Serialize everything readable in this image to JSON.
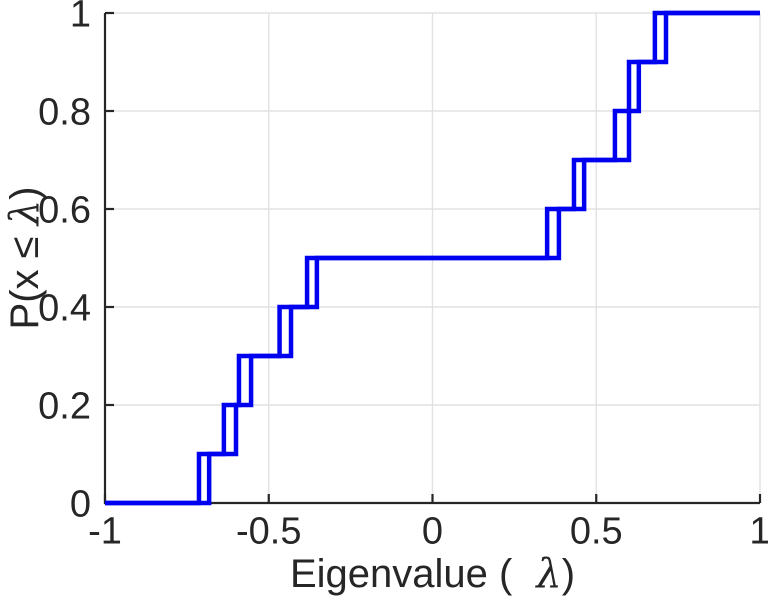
{
  "figure": {
    "background_color": "#FFFFFF"
  },
  "chart_data": {
    "type": "line",
    "subtype": "empirical-cdf-stairs",
    "title": "",
    "xlabel": "Eigenvalue ( λ)",
    "ylabel": "P(x ≤ λ)",
    "xlabel_parts": {
      "prefix": "Eigenvalue (",
      "symbol": "λ",
      "suffix": ")"
    },
    "ylabel_parts": {
      "prefix": "P(x ≤ ",
      "symbol": "λ",
      "suffix": ")"
    },
    "xlim": [
      -1,
      1
    ],
    "ylim": [
      0,
      1
    ],
    "x_ticks": [
      -1,
      -0.5,
      0,
      0.5,
      1
    ],
    "x_tick_labels": [
      "-1",
      "-0.5",
      "0",
      "0.5",
      "1"
    ],
    "y_ticks": [
      0,
      0.2,
      0.4,
      0.6,
      0.8,
      1
    ],
    "y_tick_labels": [
      "0",
      "0.2",
      "0.4",
      "0.6",
      "0.8",
      "1"
    ],
    "grid": true,
    "legend": null,
    "cdf_step": 0.1,
    "series": [
      {
        "name": "eigenvalue-cdf-1",
        "color": "#0000F0",
        "eigenvalues": [
          -0.713,
          -0.637,
          -0.591,
          -0.467,
          -0.383,
          0.35,
          0.432,
          0.557,
          0.6,
          0.679
        ]
      },
      {
        "name": "eigenvalue-cdf-2",
        "color": "#0000F0",
        "eigenvalues": [
          -0.682,
          -0.6,
          -0.554,
          -0.432,
          -0.353,
          0.386,
          0.463,
          0.6,
          0.63,
          0.713
        ]
      }
    ],
    "colors": {
      "line": "#0000F0",
      "axis": "#262626",
      "grid": "#E2E2E2",
      "tick_label": "#262626"
    }
  }
}
